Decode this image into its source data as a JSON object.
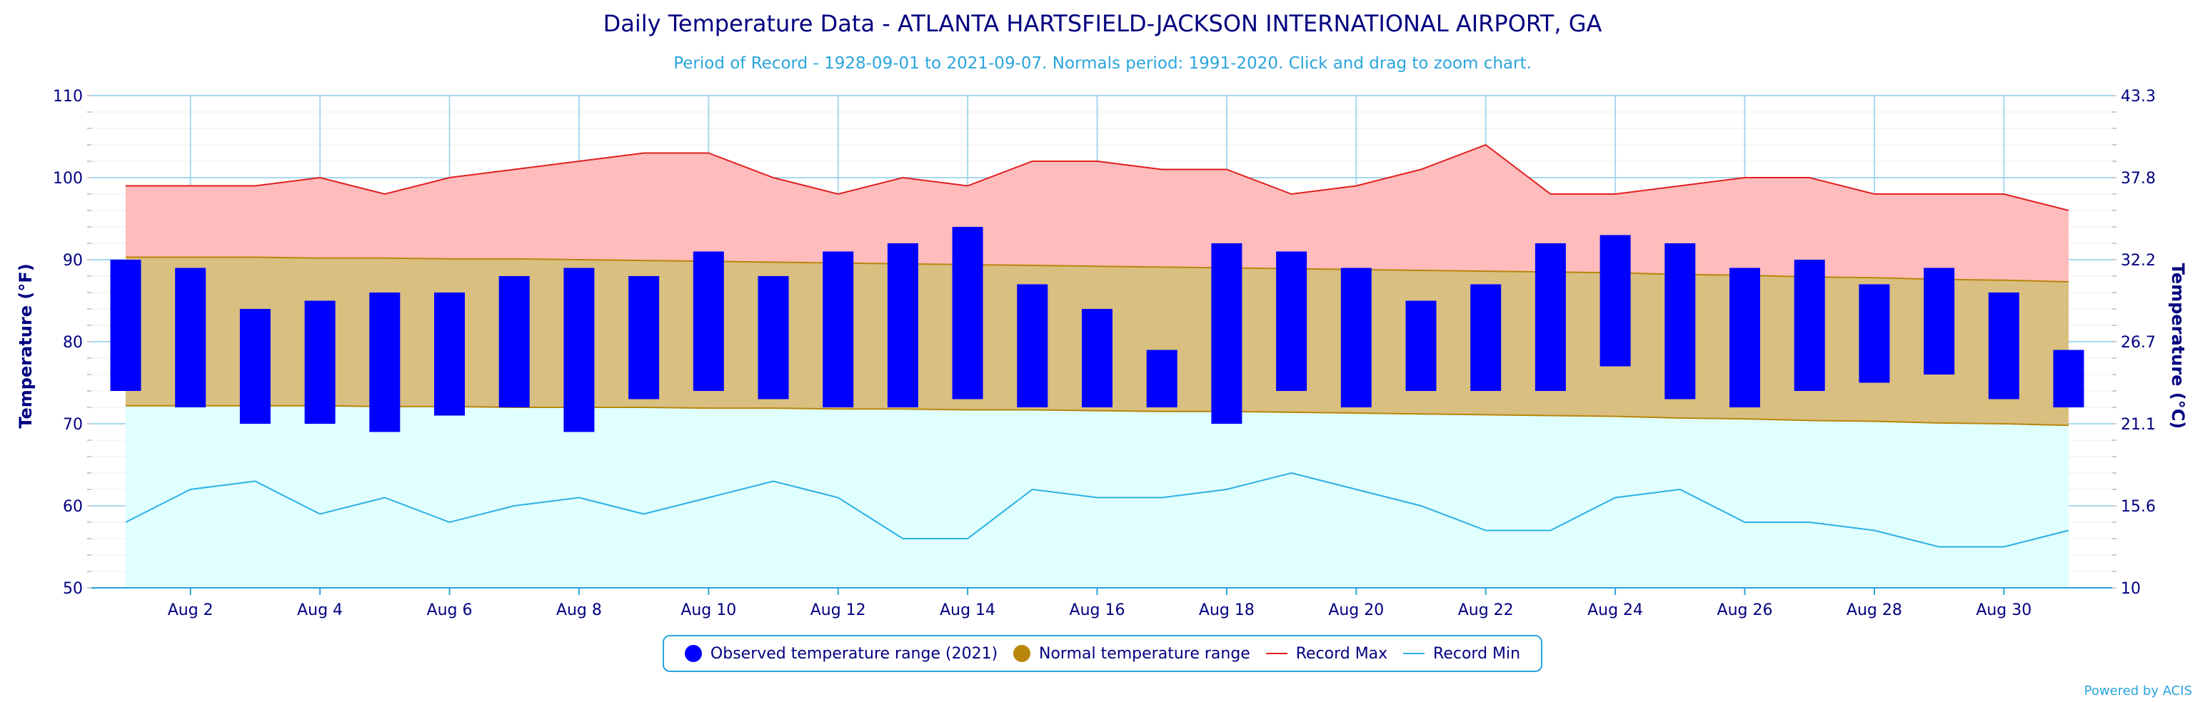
{
  "chart_data": {
    "type": "bar",
    "title": "Daily Temperature Data - ATLANTA HARTSFIELD-JACKSON INTERNATIONAL AIRPORT, GA",
    "subtitle": "Period of Record - 1928-09-01 to 2021-09-07. Normals period: 1991-2020. Click and drag to zoom chart.",
    "ylabel_left": "Temperature (°F)",
    "ylabel_right": "Temperature (°C)",
    "ylim": [
      50,
      110
    ],
    "yticks_left": [
      "50",
      "60",
      "70",
      "80",
      "90",
      "100",
      "110"
    ],
    "yticks_right": [
      "10",
      "15.6",
      "21.1",
      "26.7",
      "32.2",
      "37.8",
      "43.3"
    ],
    "x_tick_labels": [
      "Aug 2",
      "Aug 4",
      "Aug 6",
      "Aug 8",
      "Aug 10",
      "Aug 12",
      "Aug 14",
      "Aug 16",
      "Aug 18",
      "Aug 20",
      "Aug 22",
      "Aug 24",
      "Aug 26",
      "Aug 28",
      "Aug 30"
    ],
    "x_tick_days": [
      2,
      4,
      6,
      8,
      10,
      12,
      14,
      16,
      18,
      20,
      22,
      24,
      26,
      28,
      30
    ],
    "days": [
      1,
      2,
      3,
      4,
      5,
      6,
      7,
      8,
      9,
      10,
      11,
      12,
      13,
      14,
      15,
      16,
      17,
      18,
      19,
      20,
      21,
      22,
      23,
      24,
      25,
      26,
      27,
      28,
      29,
      30,
      31
    ],
    "grid": true,
    "legend_position": "bottom-center",
    "series": [
      {
        "name": "Observed temperature range (2021)",
        "color": "#0000ff",
        "low": [
          74,
          72,
          70,
          70,
          69,
          71,
          72,
          69,
          73,
          74,
          73,
          72,
          72,
          73,
          72,
          72,
          72,
          70,
          74,
          72,
          74,
          74,
          74,
          77,
          73,
          72,
          74,
          75,
          76,
          73,
          72
        ],
        "high": [
          90,
          89,
          84,
          85,
          86,
          86,
          88,
          89,
          88,
          91,
          88,
          91,
          92,
          94,
          87,
          84,
          79,
          92,
          91,
          89,
          85,
          87,
          92,
          93,
          92,
          89,
          90,
          87,
          89,
          86,
          79
        ]
      },
      {
        "name": "Normal temperature range",
        "color": "#b8860b",
        "fill": "#d9bf80",
        "low": [
          72.2,
          72.2,
          72.2,
          72.2,
          72.1,
          72.1,
          72.0,
          72.0,
          72.0,
          71.9,
          71.9,
          71.8,
          71.8,
          71.7,
          71.7,
          71.6,
          71.5,
          71.5,
          71.4,
          71.3,
          71.2,
          71.1,
          71.0,
          70.9,
          70.7,
          70.6,
          70.4,
          70.3,
          70.1,
          70.0,
          69.8
        ],
        "high": [
          90.3,
          90.3,
          90.3,
          90.2,
          90.2,
          90.1,
          90.1,
          90.0,
          89.9,
          89.8,
          89.7,
          89.6,
          89.5,
          89.4,
          89.3,
          89.2,
          89.1,
          89.0,
          88.9,
          88.8,
          88.7,
          88.6,
          88.5,
          88.4,
          88.2,
          88.1,
          87.9,
          87.8,
          87.6,
          87.5,
          87.3
        ]
      },
      {
        "name": "Record Max",
        "color": "#e02020",
        "fill": "#ffbcbc",
        "values": [
          99,
          99,
          99,
          100,
          98,
          100,
          101,
          102,
          103,
          103,
          100,
          98,
          100,
          99,
          102,
          102,
          101,
          101,
          98,
          99,
          101,
          104,
          98,
          98,
          99,
          100,
          100,
          98,
          98,
          98,
          96
        ]
      },
      {
        "name": "Record Min",
        "color": "#2ab0e6",
        "fill": "#e0ffff",
        "values": [
          58,
          62,
          63,
          59,
          61,
          58,
          60,
          61,
          59,
          61,
          63,
          61,
          56,
          56,
          62,
          61,
          61,
          62,
          64,
          62,
          60,
          57,
          57,
          61,
          62,
          58,
          58,
          57,
          55,
          55,
          57
        ]
      }
    ],
    "credit": "Powered by ACIS"
  }
}
